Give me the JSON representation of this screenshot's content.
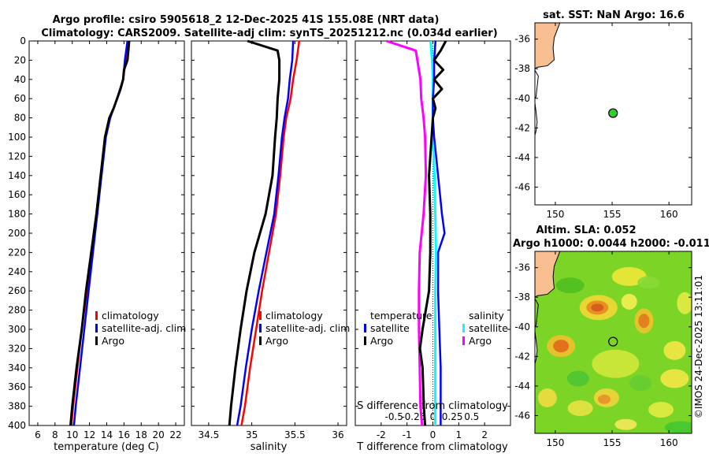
{
  "titles": {
    "main_line1": "Argo profile: csiro 5905618_2 12-Dec-2025 41S 155.08E (NRT data)",
    "main_line2": "Climatology: CARS2009. Satellite-adj clim: synTS_20251212.nc (0.034d earlier)",
    "sst_title": "sat. SST: NaN Argo: 16.6",
    "sla_title1": "Altim. SLA: 0.052",
    "sla_title2": "Argo h1000: 0.0044 h2000: -0.011",
    "credit": "©IMOS 24-Dec-2025 13:11:01"
  },
  "colors": {
    "climatology": "#ff0000",
    "satellite": "#0000ff",
    "argo": "#000000",
    "salinity_satellite": "#00ffff",
    "salinity_argo": "#ff00ff",
    "land": "#f8c090",
    "marker": "#33cc33"
  },
  "chart_data": [
    {
      "type": "line",
      "panel": "temperature",
      "xlabel": "temperature (deg C)",
      "ylabel": "",
      "xlim": [
        5,
        23
      ],
      "ylim": [
        400,
        0
      ],
      "xticks": [
        6,
        8,
        10,
        12,
        14,
        16,
        18,
        20,
        22
      ],
      "yticks": [
        0,
        20,
        40,
        60,
        80,
        100,
        120,
        140,
        160,
        180,
        200,
        220,
        240,
        260,
        280,
        300,
        320,
        340,
        360,
        380,
        400
      ],
      "legend": [
        "climatology",
        "satellite-adj. clim",
        "Argo"
      ],
      "series": [
        {
          "name": "climatology",
          "color": "#ff0000",
          "depth": [
            0,
            20,
            40,
            60,
            80,
            100,
            140,
            180,
            220,
            260,
            300,
            340,
            380,
            400
          ],
          "values": [
            16.5,
            16.2,
            15.9,
            15.2,
            14.4,
            13.8,
            13.3,
            12.9,
            12.3,
            11.7,
            11.1,
            10.6,
            10.1,
            9.9
          ]
        },
        {
          "name": "satellite-adj. clim",
          "color": "#0000ff",
          "depth": [
            0,
            20,
            40,
            60,
            80,
            100,
            140,
            180,
            220,
            260,
            300,
            340,
            380,
            400
          ],
          "values": [
            16.4,
            16.1,
            15.9,
            15.2,
            14.4,
            13.9,
            13.4,
            12.9,
            12.4,
            11.9,
            11.4,
            10.9,
            10.4,
            10.2
          ]
        },
        {
          "name": "Argo",
          "color": "#000000",
          "depth": [
            0,
            10,
            20,
            30,
            40,
            50,
            60,
            70,
            80,
            100,
            140,
            180,
            220,
            260,
            300,
            340,
            380,
            400
          ],
          "values": [
            16.6,
            16.5,
            16.4,
            16.0,
            15.9,
            15.6,
            15.2,
            14.8,
            14.3,
            13.8,
            13.3,
            12.8,
            12.2,
            11.6,
            11.1,
            10.5,
            10.0,
            9.8
          ]
        }
      ]
    },
    {
      "type": "line",
      "panel": "salinity",
      "xlabel": "salinity",
      "xlim": [
        34.3,
        36.1
      ],
      "ylim": [
        400,
        0
      ],
      "xticks": [
        34.5,
        35,
        35.5,
        36
      ],
      "legend": [
        "climatology",
        "satellite-adj. clim",
        "Argo"
      ],
      "series": [
        {
          "name": "climatology",
          "color": "#ff0000",
          "depth": [
            0,
            20,
            40,
            60,
            80,
            100,
            140,
            180,
            220,
            260,
            300,
            340,
            380,
            400
          ],
          "values": [
            35.55,
            35.52,
            35.48,
            35.45,
            35.4,
            35.37,
            35.33,
            35.28,
            35.2,
            35.12,
            35.05,
            34.98,
            34.92,
            34.88
          ]
        },
        {
          "name": "satellite-adj. clim",
          "color": "#0000ff",
          "depth": [
            0,
            20,
            40,
            60,
            80,
            100,
            140,
            180,
            220,
            260,
            300,
            340,
            380,
            400
          ],
          "values": [
            35.48,
            35.47,
            35.44,
            35.42,
            35.38,
            35.35,
            35.31,
            35.26,
            35.17,
            35.08,
            35.0,
            34.93,
            34.87,
            34.83
          ]
        },
        {
          "name": "Argo",
          "color": "#000000",
          "depth": [
            0,
            10,
            20,
            40,
            60,
            80,
            100,
            140,
            180,
            220,
            260,
            300,
            340,
            380,
            400
          ],
          "values": [
            34.95,
            35.3,
            35.32,
            35.32,
            35.3,
            35.29,
            35.27,
            35.24,
            35.16,
            35.03,
            34.94,
            34.87,
            34.81,
            34.76,
            34.74
          ]
        }
      ]
    },
    {
      "type": "line",
      "panel": "difference",
      "xlabel": "T difference from climatology",
      "xlabel_top": "S difference from climatology",
      "xlim": [
        -3,
        3
      ],
      "xlim_salinity": [
        -1.0,
        1.0
      ],
      "ylim": [
        400,
        0
      ],
      "xticks": [
        -2,
        -1,
        0,
        1,
        2
      ],
      "xticks_salinity": [
        -0.5,
        -0.25,
        0,
        0.25,
        0.5
      ],
      "xticks_salinity_labels": [
        "-0.5",
        "-0.25",
        "0",
        "0.25",
        "0.5"
      ],
      "legend_temperature_title": "temperature",
      "legend_salinity_title": "salinity",
      "legend_temperature": [
        "satellite",
        "Argo"
      ],
      "legend_salinity": [
        "satellite",
        "Argo"
      ],
      "series": [
        {
          "name": "temperature satellite",
          "color": "#0000ff",
          "depth": [
            0,
            20,
            40,
            60,
            80,
            100,
            140,
            180,
            200,
            220,
            260,
            300,
            340,
            380,
            400
          ],
          "values": [
            0.1,
            0.05,
            0.05,
            0.0,
            0.0,
            0.05,
            0.2,
            0.35,
            0.45,
            0.2,
            0.2,
            0.25,
            0.3,
            0.3,
            0.3
          ]
        },
        {
          "name": "temperature Argo",
          "color": "#000000",
          "depth": [
            0,
            10,
            20,
            30,
            40,
            50,
            60,
            70,
            80,
            100,
            140,
            180,
            220,
            260,
            300,
            320,
            340,
            380,
            400
          ],
          "values": [
            0.5,
            0.3,
            0.05,
            0.4,
            0.05,
            0.35,
            0.0,
            0.1,
            0.0,
            -0.05,
            -0.15,
            -0.1,
            -0.1,
            -0.15,
            -0.4,
            -0.5,
            -0.4,
            -0.35,
            -0.3
          ]
        },
        {
          "name": "salinity satellite",
          "color": "#00ffff",
          "depth": [
            0,
            20,
            40,
            60,
            80,
            100,
            140,
            180,
            220,
            260,
            300,
            340,
            380,
            400
          ],
          "values": [
            -0.03,
            -0.01,
            0.0,
            0.0,
            0.0,
            0.0,
            0.02,
            0.03,
            0.04,
            0.03,
            0.03,
            0.03,
            0.03,
            0.03
          ]
        },
        {
          "name": "salinity Argo",
          "color": "#ff00ff",
          "depth": [
            0,
            10,
            20,
            40,
            60,
            80,
            100,
            140,
            180,
            220,
            260,
            300,
            340,
            380,
            400
          ],
          "values": [
            -0.6,
            -0.22,
            -0.2,
            -0.16,
            -0.15,
            -0.12,
            -0.1,
            -0.09,
            -0.12,
            -0.17,
            -0.18,
            -0.18,
            -0.17,
            -0.16,
            -0.14
          ]
        }
      ]
    },
    {
      "type": "map",
      "panel": "sat-sst",
      "xlim": [
        148.2,
        162
      ],
      "ylim": [
        -47.2,
        -34.9
      ],
      "xticks": [
        150,
        155,
        160
      ],
      "yticks": [
        -36,
        -38,
        -40,
        -42,
        -44,
        -46
      ],
      "argo_position": [
        155.08,
        -41
      ]
    },
    {
      "type": "heatmap",
      "panel": "altim-sla",
      "xlim": [
        148.2,
        162
      ],
      "ylim": [
        -47.2,
        -34.9
      ],
      "xticks": [
        150,
        155,
        160
      ],
      "yticks": [
        -36,
        -38,
        -40,
        -42,
        -44,
        -46
      ],
      "argo_position": [
        155.08,
        -41
      ]
    }
  ]
}
